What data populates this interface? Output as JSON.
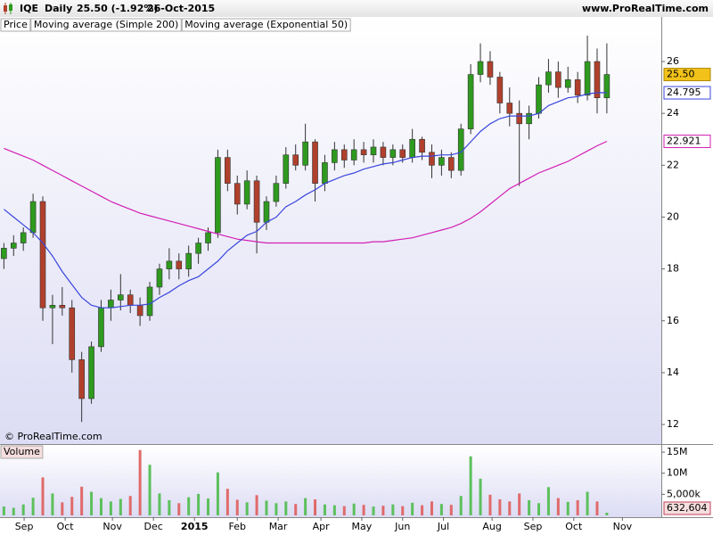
{
  "chart_data": {
    "type": "candlestick",
    "header": {
      "symbol": "IQE",
      "period": "Daily",
      "quote": "25.50 (-1.92%)",
      "date": "26-Oct-2015",
      "site": "www.ProRealTime.com"
    },
    "copyright": "© ProRealTime.com",
    "x": [
      2,
      7,
      12,
      17,
      22,
      27,
      32,
      37,
      42,
      47,
      52,
      57,
      62,
      67,
      72,
      77,
      82,
      87,
      92,
      97,
      102,
      107,
      112,
      117,
      122,
      127,
      132,
      137,
      142,
      147,
      152,
      157,
      162,
      167,
      172,
      177,
      182,
      187,
      192,
      197,
      202,
      207,
      212,
      217,
      222,
      227,
      232,
      237,
      242,
      247,
      252,
      257,
      262,
      267,
      272,
      277,
      282,
      287,
      292,
      297,
      302,
      307,
      312
    ],
    "xlim": [
      0,
      340
    ],
    "xticks": [
      {
        "value": 12.4,
        "label": "Sep"
      },
      {
        "value": 33.5,
        "label": "Oct"
      },
      {
        "value": 57.8,
        "label": "Nov"
      },
      {
        "value": 78.9,
        "label": "Dec"
      },
      {
        "value": 100,
        "label": "2015"
      },
      {
        "value": 122,
        "label": "Feb"
      },
      {
        "value": 143,
        "label": "Mar"
      },
      {
        "value": 165,
        "label": "Apr"
      },
      {
        "value": 186,
        "label": "May"
      },
      {
        "value": 207,
        "label": "Jun"
      },
      {
        "value": 228,
        "label": "Jul"
      },
      {
        "value": 253,
        "label": "Aug"
      },
      {
        "value": 274,
        "label": "Sep"
      },
      {
        "value": 295,
        "label": "Oct"
      },
      {
        "value": 320,
        "label": "Nov"
      }
    ],
    "ylim": [
      11.28,
      27.72
    ],
    "yticks": [
      12,
      14,
      16,
      18,
      20,
      22,
      24,
      26
    ],
    "ohlc": {
      "name": "Price",
      "up_color": "#2e9a1e",
      "down_color": "#b0402c",
      "last_label": "25.50",
      "open": [
        18.4,
        18.8,
        19.0,
        19.4,
        20.6,
        16.5,
        16.6,
        16.5,
        14.5,
        13.0,
        15.0,
        16.5,
        16.8,
        17.0,
        16.6,
        16.2,
        17.3,
        18.0,
        18.3,
        18.0,
        18.6,
        19.0,
        19.4,
        22.3,
        21.3,
        20.5,
        21.4,
        19.8,
        20.6,
        21.3,
        22.4,
        22.0,
        22.9,
        21.3,
        22.1,
        22.6,
        22.2,
        22.6,
        22.4,
        22.7,
        22.3,
        22.6,
        22.3,
        23.0,
        22.5,
        22.0,
        22.3,
        21.8,
        23.4,
        25.5,
        26.0,
        25.4,
        24.4,
        24.0,
        23.6,
        24.0,
        25.1,
        25.6,
        25.0,
        25.3,
        24.7,
        26.0,
        24.6
      ],
      "high": [
        19.0,
        19.3,
        19.6,
        20.9,
        20.8,
        17.0,
        17.3,
        16.8,
        14.8,
        15.2,
        16.8,
        17.2,
        17.8,
        17.2,
        16.9,
        17.5,
        18.2,
        18.8,
        18.6,
        18.9,
        19.2,
        19.6,
        22.6,
        22.6,
        21.6,
        21.8,
        21.6,
        20.8,
        21.6,
        22.7,
        22.8,
        23.6,
        23.0,
        22.4,
        22.9,
        22.8,
        23.0,
        22.9,
        23.0,
        22.9,
        22.8,
        22.8,
        23.4,
        23.1,
        22.8,
        22.6,
        22.5,
        23.6,
        25.9,
        26.7,
        26.4,
        25.6,
        25.0,
        24.5,
        24.3,
        25.4,
        26.1,
        26.0,
        25.8,
        25.6,
        27.0,
        26.5,
        26.7
      ],
      "low": [
        18.0,
        18.5,
        18.7,
        19.2,
        16.0,
        15.1,
        16.2,
        14.0,
        12.1,
        12.8,
        14.8,
        16.0,
        16.4,
        16.3,
        15.8,
        16.0,
        17.0,
        17.6,
        17.6,
        17.7,
        18.2,
        18.7,
        19.2,
        21.0,
        20.1,
        20.3,
        18.6,
        19.5,
        20.4,
        21.1,
        21.8,
        21.8,
        20.6,
        21.0,
        21.8,
        21.9,
        22.0,
        22.1,
        22.1,
        22.0,
        22.0,
        22.1,
        22.1,
        22.2,
        21.5,
        21.6,
        21.5,
        21.6,
        23.2,
        25.2,
        25.1,
        24.0,
        23.5,
        21.2,
        23.0,
        23.8,
        24.8,
        24.6,
        24.8,
        24.4,
        24.5,
        24.0,
        24.0
      ],
      "close": [
        18.8,
        19.0,
        19.4,
        20.6,
        16.5,
        16.6,
        16.5,
        14.5,
        13.0,
        15.0,
        16.5,
        16.8,
        17.0,
        16.6,
        16.2,
        17.3,
        18.0,
        18.3,
        18.0,
        18.6,
        19.0,
        19.4,
        22.3,
        21.3,
        20.5,
        21.4,
        19.8,
        20.6,
        21.3,
        22.4,
        22.0,
        22.9,
        21.3,
        22.1,
        22.6,
        22.2,
        22.6,
        22.4,
        22.7,
        22.3,
        22.6,
        22.3,
        23.0,
        22.5,
        22.0,
        22.3,
        21.8,
        23.4,
        25.5,
        26.0,
        25.4,
        24.4,
        24.0,
        23.6,
        24.0,
        25.1,
        25.6,
        25.0,
        25.3,
        24.7,
        26.0,
        24.6,
        25.5
      ]
    },
    "series": [
      {
        "name": "Moving average (Simple 200)",
        "color": "#d21fb4",
        "last_label": "22.921",
        "values": [
          22.65,
          22.5,
          22.35,
          22.2,
          22.0,
          21.8,
          21.6,
          21.4,
          21.2,
          21.0,
          20.8,
          20.6,
          20.45,
          20.3,
          20.15,
          20.05,
          19.95,
          19.85,
          19.75,
          19.65,
          19.55,
          19.45,
          19.35,
          19.25,
          19.15,
          19.1,
          19.05,
          19.0,
          19.0,
          19.0,
          19.0,
          19.0,
          19.0,
          19.0,
          19.0,
          19.0,
          19.0,
          19.0,
          19.05,
          19.05,
          19.1,
          19.15,
          19.2,
          19.3,
          19.4,
          19.5,
          19.6,
          19.75,
          19.95,
          20.2,
          20.5,
          20.8,
          21.1,
          21.3,
          21.5,
          21.7,
          21.85,
          22.0,
          22.15,
          22.35,
          22.55,
          22.75,
          22.921
        ]
      },
      {
        "name": "Moving average (Exponential 50)",
        "color": "#3a46dc",
        "last_label": "24.795",
        "values": [
          20.3,
          20.0,
          19.7,
          19.4,
          19.0,
          18.5,
          17.9,
          17.4,
          16.9,
          16.6,
          16.5,
          16.5,
          16.55,
          16.6,
          16.6,
          16.65,
          16.9,
          17.1,
          17.35,
          17.55,
          17.7,
          18.0,
          18.3,
          18.7,
          19.0,
          19.3,
          19.45,
          19.8,
          20.0,
          20.4,
          20.6,
          20.85,
          21.05,
          21.3,
          21.45,
          21.6,
          21.7,
          21.85,
          21.95,
          22.05,
          22.1,
          22.2,
          22.3,
          22.35,
          22.35,
          22.4,
          22.4,
          22.5,
          22.9,
          23.3,
          23.6,
          23.8,
          23.9,
          23.9,
          23.9,
          24.0,
          24.3,
          24.45,
          24.6,
          24.65,
          24.75,
          24.8,
          24.795
        ]
      }
    ],
    "volume": {
      "name": "Volume",
      "last_label": "632,604",
      "ylim": [
        0,
        16500000
      ],
      "yticks": [
        {
          "value": 15000000,
          "label": "15M"
        },
        {
          "value": 10000000,
          "label": "10M"
        },
        {
          "value": 5000000,
          "label": "5,000k"
        }
      ],
      "values": [
        2100000,
        1800000,
        2600000,
        4200000,
        9000000,
        5200000,
        3100000,
        4400000,
        6800000,
        5600000,
        4100000,
        3300000,
        3900000,
        4600000,
        15500000,
        12000000,
        5200000,
        3600000,
        2900000,
        4300000,
        5100000,
        4000000,
        10200000,
        6300000,
        3700000,
        3100000,
        4800000,
        3500000,
        2900000,
        3300000,
        2700000,
        4100000,
        3800000,
        2600000,
        2400000,
        2200000,
        2800000,
        2500000,
        2100000,
        2300000,
        2600000,
        2200000,
        3000000,
        2400000,
        3300000,
        2700000,
        2500000,
        4600000,
        14000000,
        8700000,
        4900000,
        3800000,
        3300000,
        5200000,
        3600000,
        2900000,
        6700000,
        4100000,
        3200000,
        3600000,
        5600000,
        3300000,
        632604
      ]
    }
  }
}
